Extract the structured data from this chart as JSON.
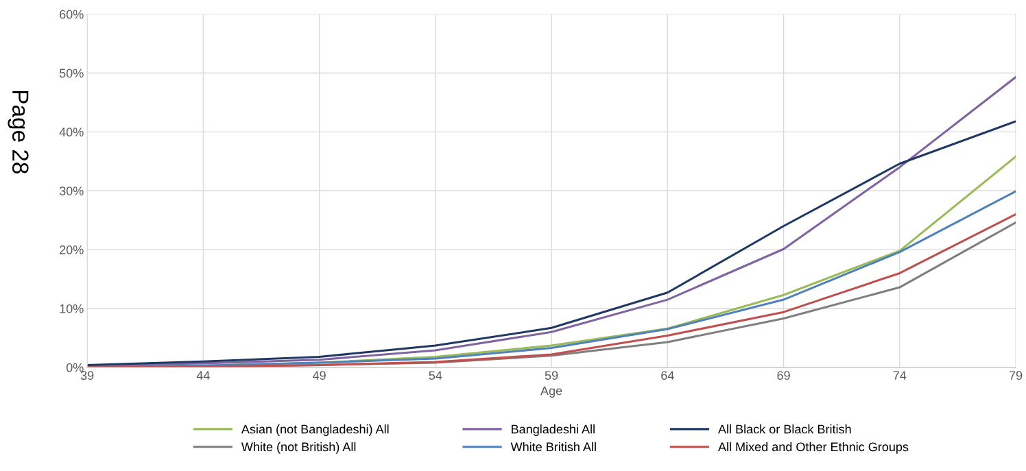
{
  "chart_data": {
    "type": "line",
    "xlabel": "Age",
    "x": [
      39,
      44,
      49,
      54,
      59,
      64,
      69,
      74,
      79
    ],
    "series": [
      {
        "name": "Asian (not Bangladeshi) All",
        "color": "#9bbb59",
        "values": [
          0.1,
          0.3,
          0.8,
          1.8,
          3.7,
          6.6,
          12.3,
          19.8,
          35.8
        ]
      },
      {
        "name": "White (not British) All",
        "color": "#7f7f7f",
        "values": [
          0.0,
          0.1,
          0.4,
          0.8,
          2.0,
          4.3,
          8.3,
          13.6,
          24.6
        ]
      },
      {
        "name": "Bangladeshi All",
        "color": "#8064a2",
        "values": [
          0.3,
          0.7,
          1.3,
          2.9,
          6.0,
          11.5,
          20.1,
          34.0,
          49.3
        ]
      },
      {
        "name": "White British All",
        "color": "#4f81bd",
        "values": [
          0.1,
          0.3,
          0.8,
          1.5,
          3.3,
          6.5,
          11.5,
          19.6,
          29.9
        ]
      },
      {
        "name": "All Black or Black British",
        "color": "#1f3864",
        "values": [
          0.4,
          1.0,
          1.8,
          3.7,
          6.7,
          12.7,
          24.0,
          34.6,
          41.8
        ]
      },
      {
        "name": "All Mixed and Other Ethnic Groups",
        "color": "#c0504d",
        "values": [
          0.0,
          0.1,
          0.4,
          0.9,
          2.2,
          5.4,
          9.4,
          16.0,
          26.0
        ]
      }
    ],
    "xlim": [
      39,
      79
    ],
    "xticks": [
      39,
      44,
      49,
      54,
      59,
      64,
      69,
      74,
      79
    ],
    "ylim": [
      0,
      60
    ],
    "yticks": [
      {
        "value": 0,
        "label": "0%"
      },
      {
        "value": 10,
        "label": "10%"
      },
      {
        "value": 20,
        "label": "20%"
      },
      {
        "value": 30,
        "label": "30%"
      },
      {
        "value": 40,
        "label": "40%"
      },
      {
        "value": 50,
        "label": "50%"
      },
      {
        "value": 60,
        "label": "60%"
      }
    ],
    "grid": true,
    "legend": "bottom",
    "marker": "none",
    "line_style": "solid",
    "annotations": [
      "Page 28"
    ]
  }
}
